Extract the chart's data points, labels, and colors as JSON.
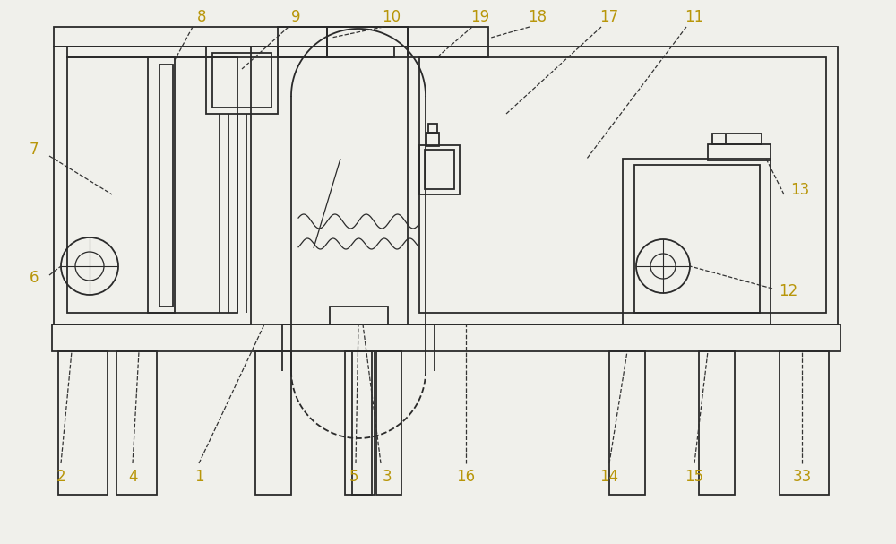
{
  "bg_color": "#f0f0eb",
  "line_color": "#2a2a2a",
  "label_color": "#b8960a",
  "lw": 1.3,
  "fig_width": 10.0,
  "fig_height": 6.07
}
